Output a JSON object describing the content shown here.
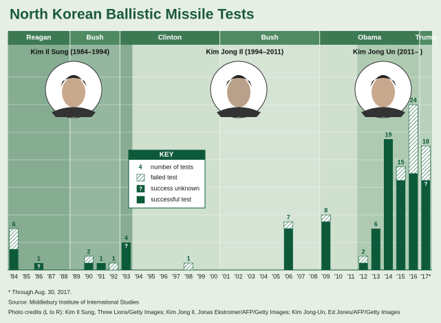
{
  "chart_data": {
    "type": "bar",
    "stacked": true,
    "title": "North Korean Ballistic Missile Tests",
    "categories": [
      "'84",
      "'85",
      "'86",
      "'87",
      "'88",
      "'89",
      "'90",
      "'91",
      "'92",
      "'93",
      "'94",
      "'95",
      "'96",
      "'97",
      "'98",
      "'99",
      "'00",
      "'01",
      "'02",
      "'03",
      "'04",
      "'05",
      "'06",
      "'07",
      "'08",
      "'09",
      "'10",
      "'11",
      "'12",
      "'13",
      "'14",
      "'15",
      "'16",
      "'17*"
    ],
    "series": [
      {
        "name": "successful test",
        "color": "#0d5a3a",
        "values": [
          3,
          0,
          0,
          0,
          0,
          0,
          1,
          1,
          0,
          3,
          0,
          0,
          0,
          0,
          0,
          0,
          0,
          0,
          0,
          0,
          0,
          0,
          6,
          0,
          0,
          7,
          0,
          0,
          1,
          6,
          19,
          13,
          14,
          12
        ]
      },
      {
        "name": "success unknown",
        "color": "#0d5a3a",
        "symbol": "?",
        "values": [
          0,
          0,
          1,
          0,
          0,
          0,
          0,
          0,
          0,
          1,
          0,
          0,
          0,
          0,
          0,
          0,
          0,
          0,
          0,
          0,
          0,
          0,
          0,
          0,
          0,
          0,
          0,
          0,
          0,
          0,
          0,
          0,
          0,
          1
        ]
      },
      {
        "name": "failed test",
        "color": "#0d5a3a",
        "pattern": "hatch",
        "values": [
          3,
          0,
          0,
          0,
          0,
          0,
          1,
          0,
          1,
          0,
          0,
          0,
          0,
          0,
          1,
          0,
          0,
          0,
          0,
          0,
          0,
          0,
          1,
          0,
          0,
          1,
          0,
          0,
          1,
          0,
          0,
          2,
          10,
          5
        ]
      }
    ],
    "totals": [
      6,
      null,
      1,
      null,
      null,
      null,
      2,
      1,
      1,
      4,
      null,
      null,
      null,
      null,
      1,
      null,
      null,
      null,
      null,
      null,
      null,
      null,
      7,
      null,
      null,
      8,
      null,
      null,
      2,
      6,
      19,
      15,
      24,
      18
    ],
    "ylim": [
      0,
      35
    ],
    "key": {
      "title": "KEY",
      "total_example": 4,
      "total_label": "number of tests"
    },
    "presidents": [
      {
        "name": "Reagan",
        "from": "'84",
        "to": "'88"
      },
      {
        "name": "Bush",
        "from": "'89",
        "to": "'92"
      },
      {
        "name": "Clinton",
        "from": "'93",
        "to": "'00"
      },
      {
        "name": "Bush",
        "from": "'01",
        "to": "'08"
      },
      {
        "name": "Obama",
        "from": "'09",
        "to": "'16"
      },
      {
        "name": "Trump",
        "from": "'17*",
        "to": "'17*"
      }
    ],
    "leaders": [
      {
        "name": "Kim Il Sung (1984–1994)",
        "from": "'84",
        "to": "'93",
        "color": "#86ad92"
      },
      {
        "name": "Kim Jong Il (1994–2011)",
        "from": "'94",
        "to": "'11",
        "color": "#cfe0cf"
      },
      {
        "name": "Kim Jong Un (2011– )",
        "from": "'12",
        "to": "'17*",
        "color": "#aecbb2"
      }
    ],
    "notes": [
      "* Through Aug. 30, 2017.",
      "Source: Middlebury Institute of International Studies",
      "Photo credits (L to R): Kim Il Sung, Three Lions/Getty Images; Kim Jong Il, Jonas Ekstromer/AFP/Getty Images; Kim Jong-Un, Ed Jones/AFP/Getty Images"
    ]
  }
}
